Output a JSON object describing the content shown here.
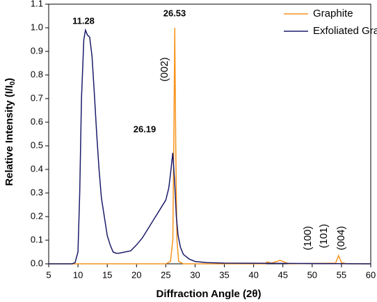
{
  "chart_data": {
    "type": "line",
    "x_label": "Diffraction Angle (2θ)",
    "y_label": "Relative Intensity  (I/I",
    "y_label_sub": "0",
    "y_label_end": ")",
    "xlim": [
      5,
      60
    ],
    "xticks": [
      5,
      10,
      15,
      20,
      25,
      30,
      35,
      40,
      45,
      50,
      55,
      60
    ],
    "ylim": [
      0,
      1.1
    ],
    "yticks": [
      {
        "value": 0,
        "label": "0.0"
      },
      {
        "value": 0.1,
        "label": "0.1"
      },
      {
        "value": 0.2,
        "label": "0.2"
      },
      {
        "value": 0.3,
        "label": "0.3"
      },
      {
        "value": 0.4,
        "label": "0.4"
      },
      {
        "value": 0.5,
        "label": "0.5"
      },
      {
        "value": 0.6,
        "label": "0.6"
      },
      {
        "value": 0.7,
        "label": "0.7"
      },
      {
        "value": 0.8,
        "label": "0.8"
      },
      {
        "value": 0.9,
        "label": "0.9"
      },
      {
        "value": 1.0,
        "label": "1.0"
      },
      {
        "value": 1.1,
        "label": "1.1"
      }
    ],
    "legend": "top-right",
    "series": [
      {
        "name": "Graphite",
        "color": "#f7941d",
        "x": [
          5,
          25,
          25.8,
          26.2,
          26.4,
          26.53,
          26.7,
          26.9,
          27.2,
          28,
          42,
          42.3,
          43,
          44,
          44.5,
          45,
          46,
          54,
          54.5,
          55,
          56,
          60
        ],
        "values": [
          0,
          0,
          0.01,
          0.1,
          0.6,
          1.0,
          0.5,
          0.1,
          0.01,
          0,
          0,
          0.008,
          0.003,
          0.01,
          0.015,
          0.01,
          0,
          0.003,
          0.035,
          0.005,
          0,
          0
        ]
      },
      {
        "name": "Exfoliated Graphite",
        "color": "#1b1b6b",
        "x": [
          5,
          9,
          9.5,
          10,
          10.3,
          10.6,
          11,
          11.28,
          11.6,
          12,
          12.4,
          12.8,
          13.2,
          13.6,
          14,
          14.5,
          15,
          15.5,
          16,
          16.5,
          17,
          18,
          19,
          20,
          21,
          22,
          23,
          24,
          25,
          25.5,
          25.8,
          26.19,
          26.5,
          26.8,
          27.1,
          27.5,
          28,
          29,
          30,
          32,
          35,
          45,
          60
        ],
        "values": [
          0,
          0,
          0.005,
          0.05,
          0.3,
          0.7,
          0.95,
          0.99,
          0.97,
          0.96,
          0.88,
          0.72,
          0.55,
          0.4,
          0.28,
          0.2,
          0.12,
          0.08,
          0.05,
          0.045,
          0.045,
          0.05,
          0.055,
          0.08,
          0.11,
          0.15,
          0.19,
          0.23,
          0.27,
          0.32,
          0.38,
          0.47,
          0.35,
          0.2,
          0.12,
          0.07,
          0.04,
          0.02,
          0.01,
          0.005,
          0.003,
          0.002,
          0
        ]
      }
    ],
    "annotations": [
      "11.28",
      "26.53",
      "26.19",
      "(002)",
      "(100)",
      "(101)",
      "(004)"
    ]
  }
}
